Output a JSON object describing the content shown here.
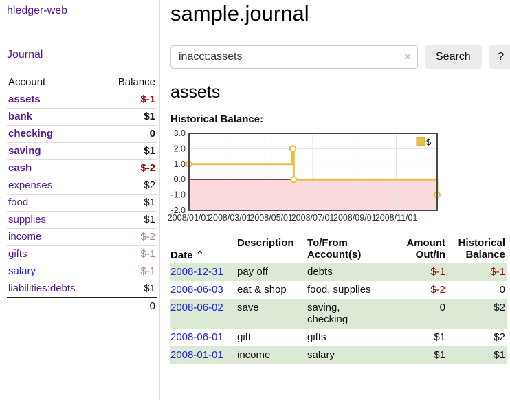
{
  "sidebar": {
    "brand": "hledger-web",
    "journal_link": "Journal",
    "accounts": {
      "headers": {
        "account": "Account",
        "balance": "Balance"
      },
      "rows": [
        {
          "name": "assets",
          "balance": "$-1"
        },
        {
          "name": "bank",
          "balance": "$1"
        },
        {
          "name": "checking",
          "balance": "0"
        },
        {
          "name": "saving",
          "balance": "$1"
        },
        {
          "name": "cash",
          "balance": "$-2"
        },
        {
          "name": "expenses",
          "balance": "$2"
        },
        {
          "name": "food",
          "balance": "$1"
        },
        {
          "name": "supplies",
          "balance": "$1"
        },
        {
          "name": "income",
          "balance": "$-2"
        },
        {
          "name": "gifts",
          "balance": "$-1"
        },
        {
          "name": "salary",
          "balance": "$-1"
        },
        {
          "name": "liabilities:debts",
          "balance": "$1"
        }
      ],
      "total": "0"
    }
  },
  "main": {
    "title": "sample.journal",
    "search": {
      "value": "inacct:assets",
      "clear_icon": "×",
      "button": "Search",
      "help_button": "?"
    },
    "account_heading": "assets",
    "chart_label": "Historical Balance:"
  },
  "register": {
    "headers": {
      "date": "Date",
      "sort_icon": "⌃",
      "description": "Description",
      "accounts": "To/From\nAccount(s)",
      "amount": "Amount\nOut/In",
      "balance": "Historical\nBalance"
    },
    "rows": [
      {
        "date": "2008-12-31",
        "description": "pay off",
        "accounts": "debts",
        "amount": "$-1",
        "balance": "$-1"
      },
      {
        "date": "2008-06-03",
        "description": "eat & shop",
        "accounts": "food, supplies",
        "amount": "$-2",
        "balance": "0"
      },
      {
        "date": "2008-06-02",
        "description": "save",
        "accounts": "saving,\nchecking",
        "amount": "0",
        "balance": "$2"
      },
      {
        "date": "2008-06-01",
        "description": "gift",
        "accounts": "gifts",
        "amount": "$1",
        "balance": "$2"
      },
      {
        "date": "2008-01-01",
        "description": "income",
        "accounts": "salary",
        "amount": "$1",
        "balance": "$1"
      }
    ]
  },
  "chart_data": {
    "type": "line",
    "step": true,
    "title": "Historical Balance:",
    "series": [
      {
        "name": "$",
        "color": "#e8bf45",
        "points": [
          [
            "2008-01-01",
            1
          ],
          [
            "2008-06-01",
            2
          ],
          [
            "2008-06-02",
            2
          ],
          [
            "2008-06-03",
            0
          ],
          [
            "2008-12-31",
            -1
          ]
        ]
      }
    ],
    "xlim": [
      "2008-01-01",
      "2008-12-31"
    ],
    "ylim": [
      -2,
      3
    ],
    "x_tick_labels": [
      "2008/01/01",
      "2008/03/01",
      "2008/05/01",
      "2008/07/01",
      "2008/09/01",
      "2008/11/01"
    ],
    "y_tick_values": [
      3,
      2,
      1,
      0,
      -1,
      -2
    ],
    "y_tick_labels": [
      "3.0",
      "2.0",
      "1.0",
      "0.0",
      "-1.0",
      "-2.0"
    ],
    "legend": {
      "label": "$",
      "position": "top-right"
    },
    "grid": true,
    "marker": "open-circle",
    "colors": {
      "negative_region": "#fadada",
      "zero_line": "#8b0000",
      "gridline": "#e3e3e3",
      "border": "#4a4a4a",
      "legend_square_border": "#cfa42e",
      "tick_label": "#333333"
    }
  }
}
